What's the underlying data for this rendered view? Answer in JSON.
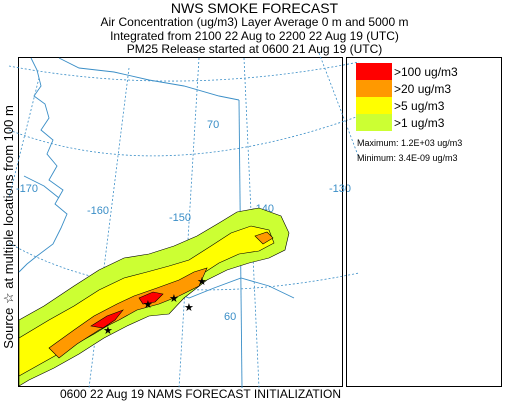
{
  "title": {
    "line1": "NWS SMOKE FORECAST",
    "line2": "Air Concentration (ug/m3) Layer Average    0 m and  5000 m",
    "line3": "Integrated from 2100 22 Aug to 2200 22 Aug 19 (UTC)",
    "line4": "PM25 Release started at 0600 21 Aug 19 (UTC)"
  },
  "side_label": "Source ☆  at multiple locations   from  100 m",
  "footer": "0600 22 Aug 19 NAMS FORECAST INITIALIZATION",
  "map": {
    "graticule_labels": [
      "-170",
      "-160",
      "-150",
      "-140",
      "-130",
      "70",
      "60"
    ]
  },
  "legend": {
    "items": [
      {
        "label": ">100 ug/m3",
        "color": "#ff0000"
      },
      {
        "label": ">20 ug/m3",
        "color": "#ff9900"
      },
      {
        "label": ">5 ug/m3",
        "color": "#ffff00"
      },
      {
        "label": ">1 ug/m3",
        "color": "#ccff33"
      }
    ],
    "maximum": "Maximum: 1.2E+03 ug/m3",
    "minimum": "Minimum: 3.4E-09 ug/m3"
  }
}
